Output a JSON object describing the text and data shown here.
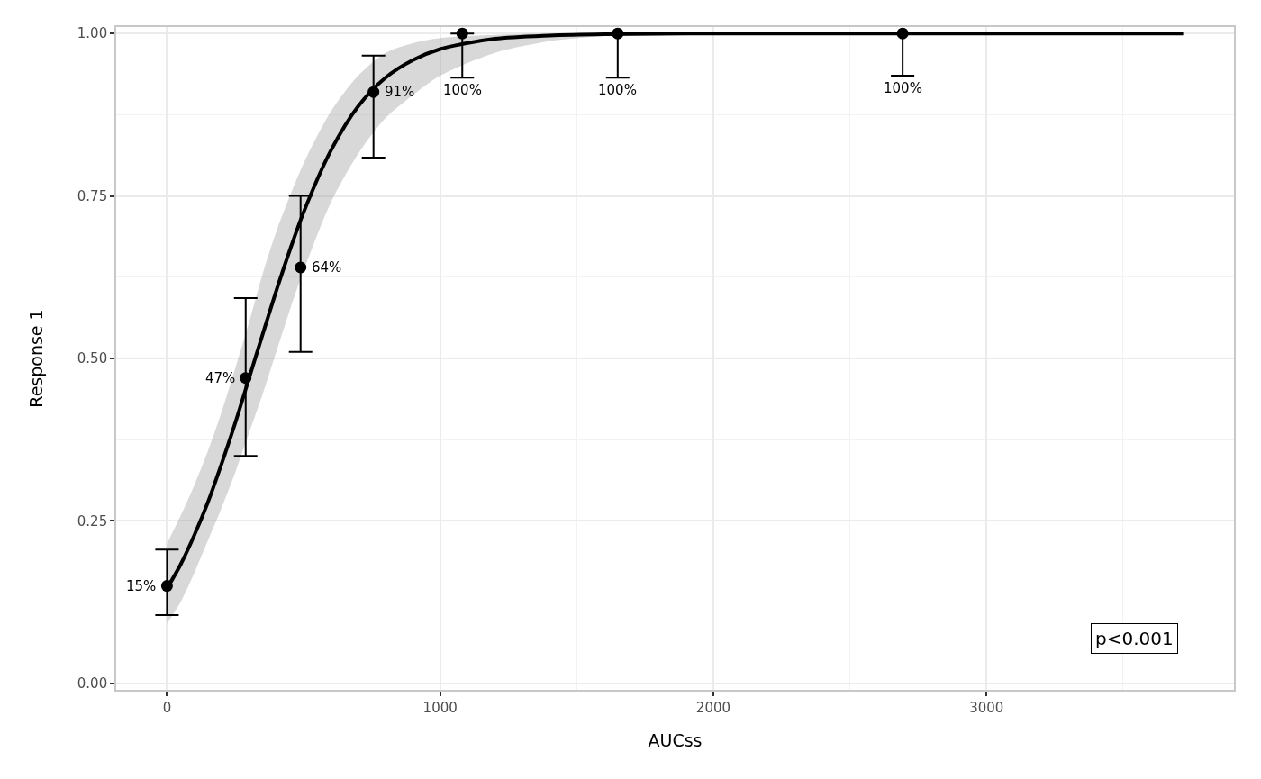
{
  "chart_data": {
    "type": "scatter",
    "xlabel": "AUCss",
    "ylabel": "Response 1",
    "xlim": [
      -186,
      3906
    ],
    "ylim": [
      -0.01,
      1.01
    ],
    "xticks": [
      0,
      1000,
      2000,
      3000
    ],
    "yticks": [
      {
        "value": 0,
        "label": "0.00"
      },
      {
        "value": 0.25,
        "label": "0.25"
      },
      {
        "value": 0.5,
        "label": "0.50"
      },
      {
        "value": 0.75,
        "label": "0.75"
      },
      {
        "value": 1,
        "label": "1.00"
      }
    ],
    "grid": true,
    "line_style": "solid",
    "annotations": [
      "p<0.001"
    ],
    "series": [
      {
        "type": "line",
        "color": "#000000",
        "x": [
          0,
          50,
          100,
          150,
          200,
          250,
          300,
          350,
          400,
          450,
          500,
          600,
          700,
          800,
          900,
          1000,
          1200,
          1400,
          1600,
          2000,
          3720
        ],
        "values": [
          0.146,
          0.183,
          0.228,
          0.279,
          0.338,
          0.401,
          0.469,
          0.537,
          0.604,
          0.667,
          0.725,
          0.82,
          0.888,
          0.932,
          0.959,
          0.976,
          0.992,
          0.997,
          0.999,
          1.0,
          1.0
        ],
        "lower": [
          0.092,
          0.125,
          0.17,
          0.22,
          0.27,
          0.325,
          0.385,
          0.445,
          0.51,
          0.575,
          0.635,
          0.74,
          0.815,
          0.87,
          0.905,
          0.935,
          0.97,
          0.988,
          0.996,
          1.0,
          1.0
        ],
        "upper": [
          0.215,
          0.258,
          0.305,
          0.358,
          0.418,
          0.485,
          0.555,
          0.63,
          0.695,
          0.75,
          0.8,
          0.88,
          0.935,
          0.97,
          0.985,
          0.993,
          0.998,
          1.0,
          1.0,
          1.0,
          1.0
        ]
      },
      {
        "color": "#000000",
        "marker": "circle",
        "x": [
          0,
          288,
          489,
          756,
          1081,
          1650,
          2693
        ],
        "values": [
          0.15,
          0.47,
          0.64,
          0.91,
          1.0,
          1.0,
          1.0
        ],
        "errors": [
          [
            0.105,
            0.206
          ],
          [
            0.35,
            0.593
          ],
          [
            0.51,
            0.75
          ],
          [
            0.809,
            0.966
          ],
          [
            0.932,
            1.0
          ],
          [
            0.932,
            1.0
          ],
          [
            0.935,
            1.0
          ]
        ],
        "value_labels": [
          "15%",
          "47%",
          "64%",
          "91%",
          "100%",
          "100%",
          "100%"
        ]
      }
    ]
  }
}
